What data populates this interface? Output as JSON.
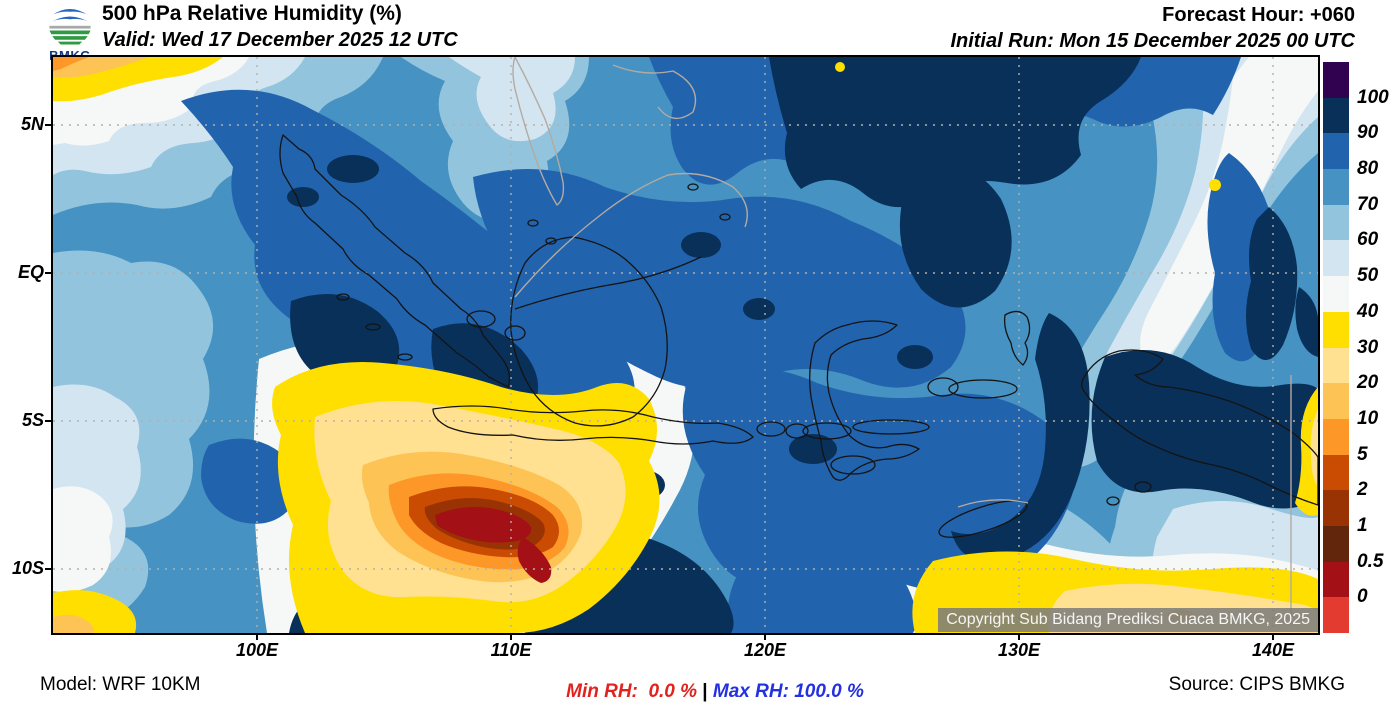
{
  "header": {
    "logo_text": "BMKG",
    "title": "500 hPa Relative Humidity (%)",
    "valid_line": "Valid: Wed 17 December 2025 12 UTC",
    "forecast_hour": "Forecast Hour: +060",
    "initial_run": "Initial Run: Mon 15 December 2025 00 UTC"
  },
  "axes": {
    "lat": [
      "5N",
      "EQ",
      "5S",
      "10S"
    ],
    "lon": [
      "100E",
      "110E",
      "120E",
      "130E",
      "140E"
    ]
  },
  "legend": {
    "labels": [
      "100",
      "90",
      "80",
      "70",
      "60",
      "50",
      "40",
      "30",
      "20",
      "10",
      "5",
      "2",
      "1",
      "0.5",
      "0"
    ],
    "colors": [
      "#30024f",
      "#093059",
      "#2263ae",
      "#4592c3",
      "#92c4dd",
      "#d4e5f2",
      "#f5f8f6",
      "#ffdf00",
      "#ffe191",
      "#fec355",
      "#fd9728",
      "#ca4b02",
      "#993303",
      "#62260c",
      "#a31016",
      "#e43b31"
    ]
  },
  "map_overlay": {
    "copyright": "Copyright Sub Bidang Prediksi Cuaca BMKG, 2025"
  },
  "footer": {
    "model": "Model: WRF 10KM",
    "min_rh": "Min RH:  0.0 %",
    "separator": " | ",
    "max_rh": "Max RH: 100.0 %",
    "source": "Source: CIPS BMKG"
  },
  "chart_data": {
    "type": "heatmap",
    "title": "500 hPa Relative Humidity (%)",
    "unit": "%",
    "levels": [
      0,
      0.5,
      1,
      2,
      5,
      10,
      20,
      30,
      40,
      50,
      60,
      70,
      80,
      90,
      100
    ],
    "lat_ticks": [
      "5N",
      "EQ",
      "5S",
      "10S"
    ],
    "lon_ticks": [
      "100E",
      "110E",
      "120E",
      "130E",
      "140E"
    ],
    "min_rh": 0.0,
    "max_rh": 100.0,
    "legend_position": "right"
  }
}
